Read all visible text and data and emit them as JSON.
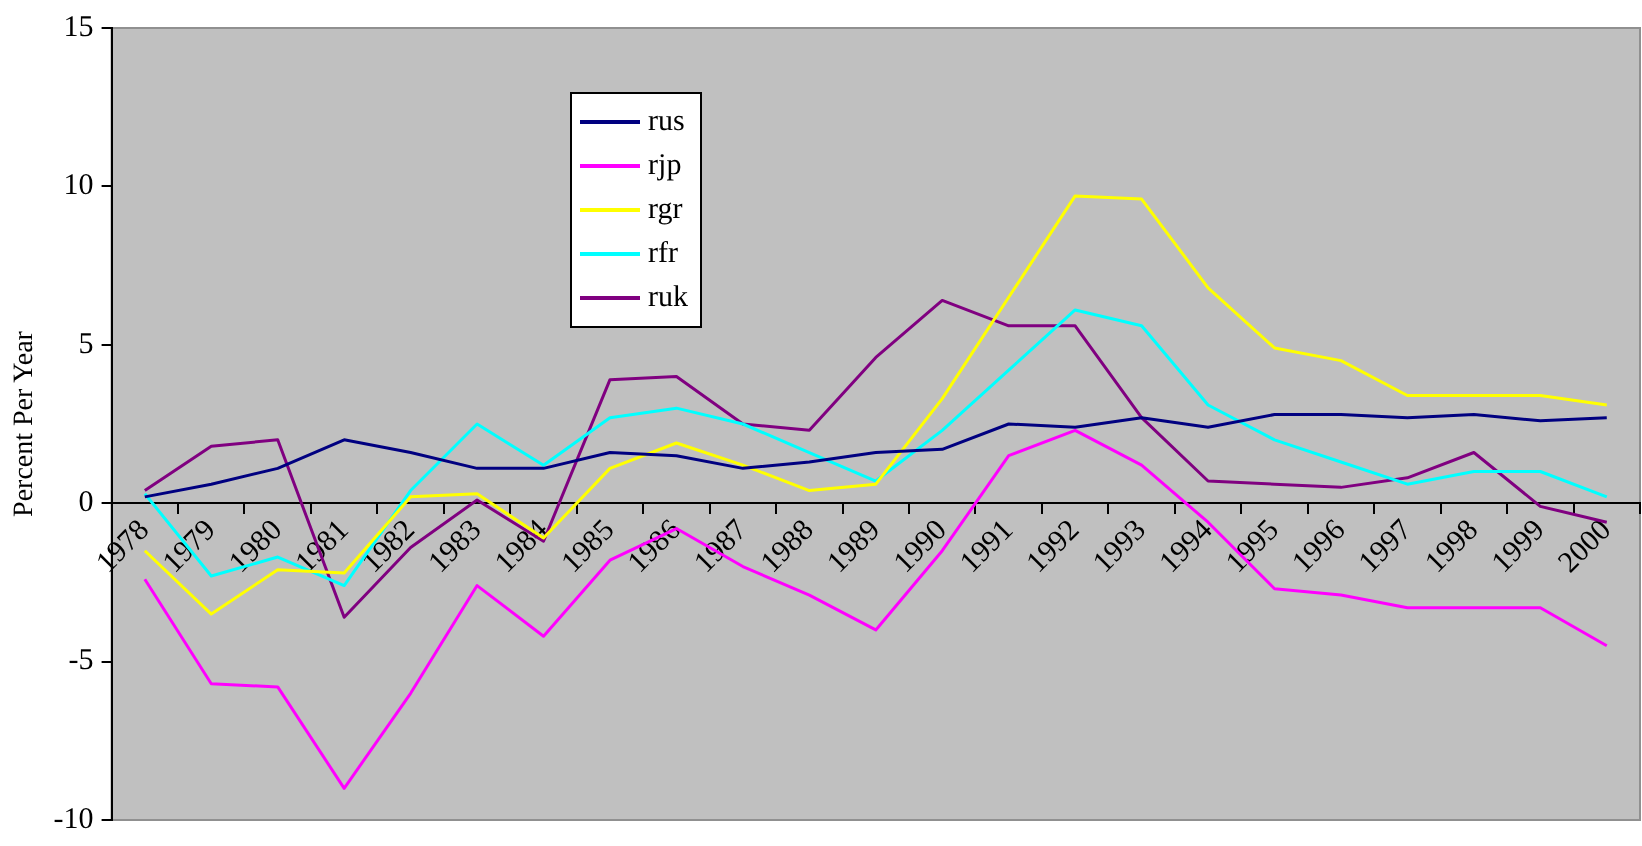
{
  "chart_data": {
    "type": "line",
    "ylabel": "Percent Per Year",
    "categories": [
      "1978",
      "1979",
      "1980",
      "1981",
      "1982",
      "1983",
      "1984",
      "1985",
      "1986",
      "1987",
      "1988",
      "1989",
      "1990",
      "1991",
      "1992",
      "1993",
      "1994",
      "1995",
      "1996",
      "1997",
      "1998",
      "1999",
      "2000"
    ],
    "series": [
      {
        "name": "rus",
        "color": "#000080",
        "values": [
          0.2,
          0.6,
          1.1,
          2.0,
          1.6,
          1.1,
          1.1,
          1.6,
          1.5,
          1.1,
          1.3,
          1.6,
          1.7,
          2.5,
          2.4,
          2.7,
          2.4,
          2.8,
          2.8,
          2.7,
          2.8,
          2.6,
          2.7
        ]
      },
      {
        "name": "rjp",
        "color": "#ff00ff",
        "values": [
          -2.4,
          -5.7,
          -5.8,
          -9.0,
          -6.0,
          -2.6,
          -4.2,
          -1.8,
          -0.8,
          -2.0,
          -2.9,
          -4.0,
          -1.5,
          1.5,
          2.3,
          1.2,
          -0.6,
          -2.7,
          -2.9,
          -3.3,
          -3.3,
          -3.3,
          -4.5
        ]
      },
      {
        "name": "rgr",
        "color": "#ffff00",
        "values": [
          -1.5,
          -3.5,
          -2.1,
          -2.2,
          0.2,
          0.3,
          -1.1,
          1.1,
          1.9,
          1.2,
          0.4,
          0.6,
          3.3,
          6.5,
          9.7,
          9.6,
          6.8,
          4.9,
          4.5,
          3.4,
          3.4,
          3.4,
          3.1
        ]
      },
      {
        "name": "rfr",
        "color": "#00ffff",
        "values": [
          0.3,
          -2.3,
          -1.7,
          -2.6,
          0.4,
          2.5,
          1.2,
          2.7,
          3.0,
          2.5,
          1.6,
          0.7,
          2.3,
          4.2,
          6.1,
          5.6,
          3.1,
          2.0,
          1.3,
          0.6,
          1.0,
          1.0,
          0.2
        ]
      },
      {
        "name": "ruk",
        "color": "#800080",
        "values": [
          0.4,
          1.8,
          2.0,
          -3.6,
          -1.4,
          0.1,
          -1.2,
          3.9,
          4.0,
          2.5,
          2.3,
          4.6,
          6.4,
          5.6,
          5.6,
          2.7,
          0.7,
          0.6,
          0.5,
          0.8,
          1.6,
          -0.1,
          -0.6
        ]
      }
    ],
    "ylim": [
      -10,
      15
    ],
    "yticks": [
      -10,
      -5,
      0,
      5,
      10,
      15
    ],
    "grid": false,
    "legend": "top left",
    "marker": "none",
    "line_style": "solid"
  }
}
